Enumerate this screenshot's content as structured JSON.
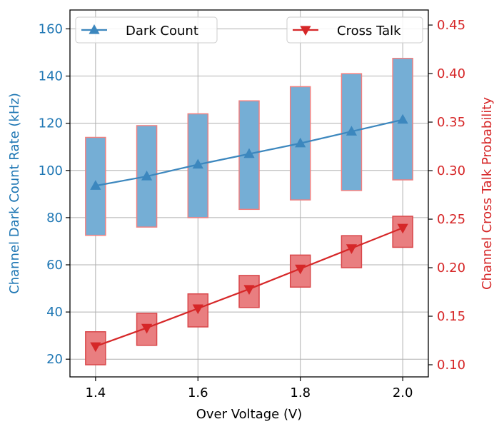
{
  "chart_data": {
    "type": "line",
    "x": [
      1.4,
      1.5,
      1.6,
      1.7,
      1.8,
      1.9,
      2.0
    ],
    "xlabel": "Over Voltage (V)",
    "xlim": [
      1.35,
      2.05
    ],
    "xticks": [
      1.4,
      1.6,
      1.8,
      2.0
    ],
    "xtick_labels": [
      "1.4",
      "1.6",
      "1.8",
      "2.0"
    ],
    "y_left": {
      "label": "Channel Dark Count Rate (kHz)",
      "lim": [
        12.5,
        168
      ],
      "ticks": [
        20,
        40,
        60,
        80,
        100,
        120,
        140,
        160
      ],
      "tick_labels": [
        "20",
        "40",
        "60",
        "80",
        "100",
        "120",
        "140",
        "160"
      ],
      "color": "#1f77b4"
    },
    "y_right": {
      "label": "Channel Cross Talk Probability",
      "lim": [
        0.0875,
        0.4655
      ],
      "ticks": [
        0.1,
        0.15,
        0.2,
        0.25,
        0.3,
        0.35,
        0.4,
        0.45
      ],
      "tick_labels": [
        "0.10",
        "0.15",
        "0.20",
        "0.25",
        "0.30",
        "0.35",
        "0.40",
        "0.45"
      ],
      "color": "#d62728"
    },
    "series": [
      {
        "name": "Dark Count",
        "axis": "left",
        "marker": "triangle-up",
        "color": "#3c87be",
        "values": [
          93.5,
          97.5,
          102.5,
          107,
          111.5,
          116.5,
          121.5
        ],
        "range_low": [
          72.5,
          76,
          80,
          83.5,
          87.5,
          91.5,
          96
        ],
        "range_high": [
          114,
          119,
          124,
          129.5,
          135.5,
          141,
          147.5
        ],
        "box_fill": "#75aed5",
        "box_edge": "#f08080"
      },
      {
        "name": "Cross Talk",
        "axis": "right",
        "marker": "triangle-down",
        "color": "#d62728",
        "values": [
          0.119,
          0.138,
          0.158,
          0.178,
          0.199,
          0.22,
          0.241
        ],
        "range_low": [
          0.1,
          0.12,
          0.139,
          0.159,
          0.18,
          0.2,
          0.221
        ],
        "range_high": [
          0.134,
          0.153,
          0.173,
          0.192,
          0.213,
          0.233,
          0.253
        ],
        "box_fill": "#e97e80",
        "box_edge": "#d9474a"
      }
    ],
    "grid": true,
    "legend": [
      {
        "series": "Dark Count",
        "placement": "upper-left"
      },
      {
        "series": "Cross Talk",
        "placement": "upper-right"
      }
    ]
  }
}
